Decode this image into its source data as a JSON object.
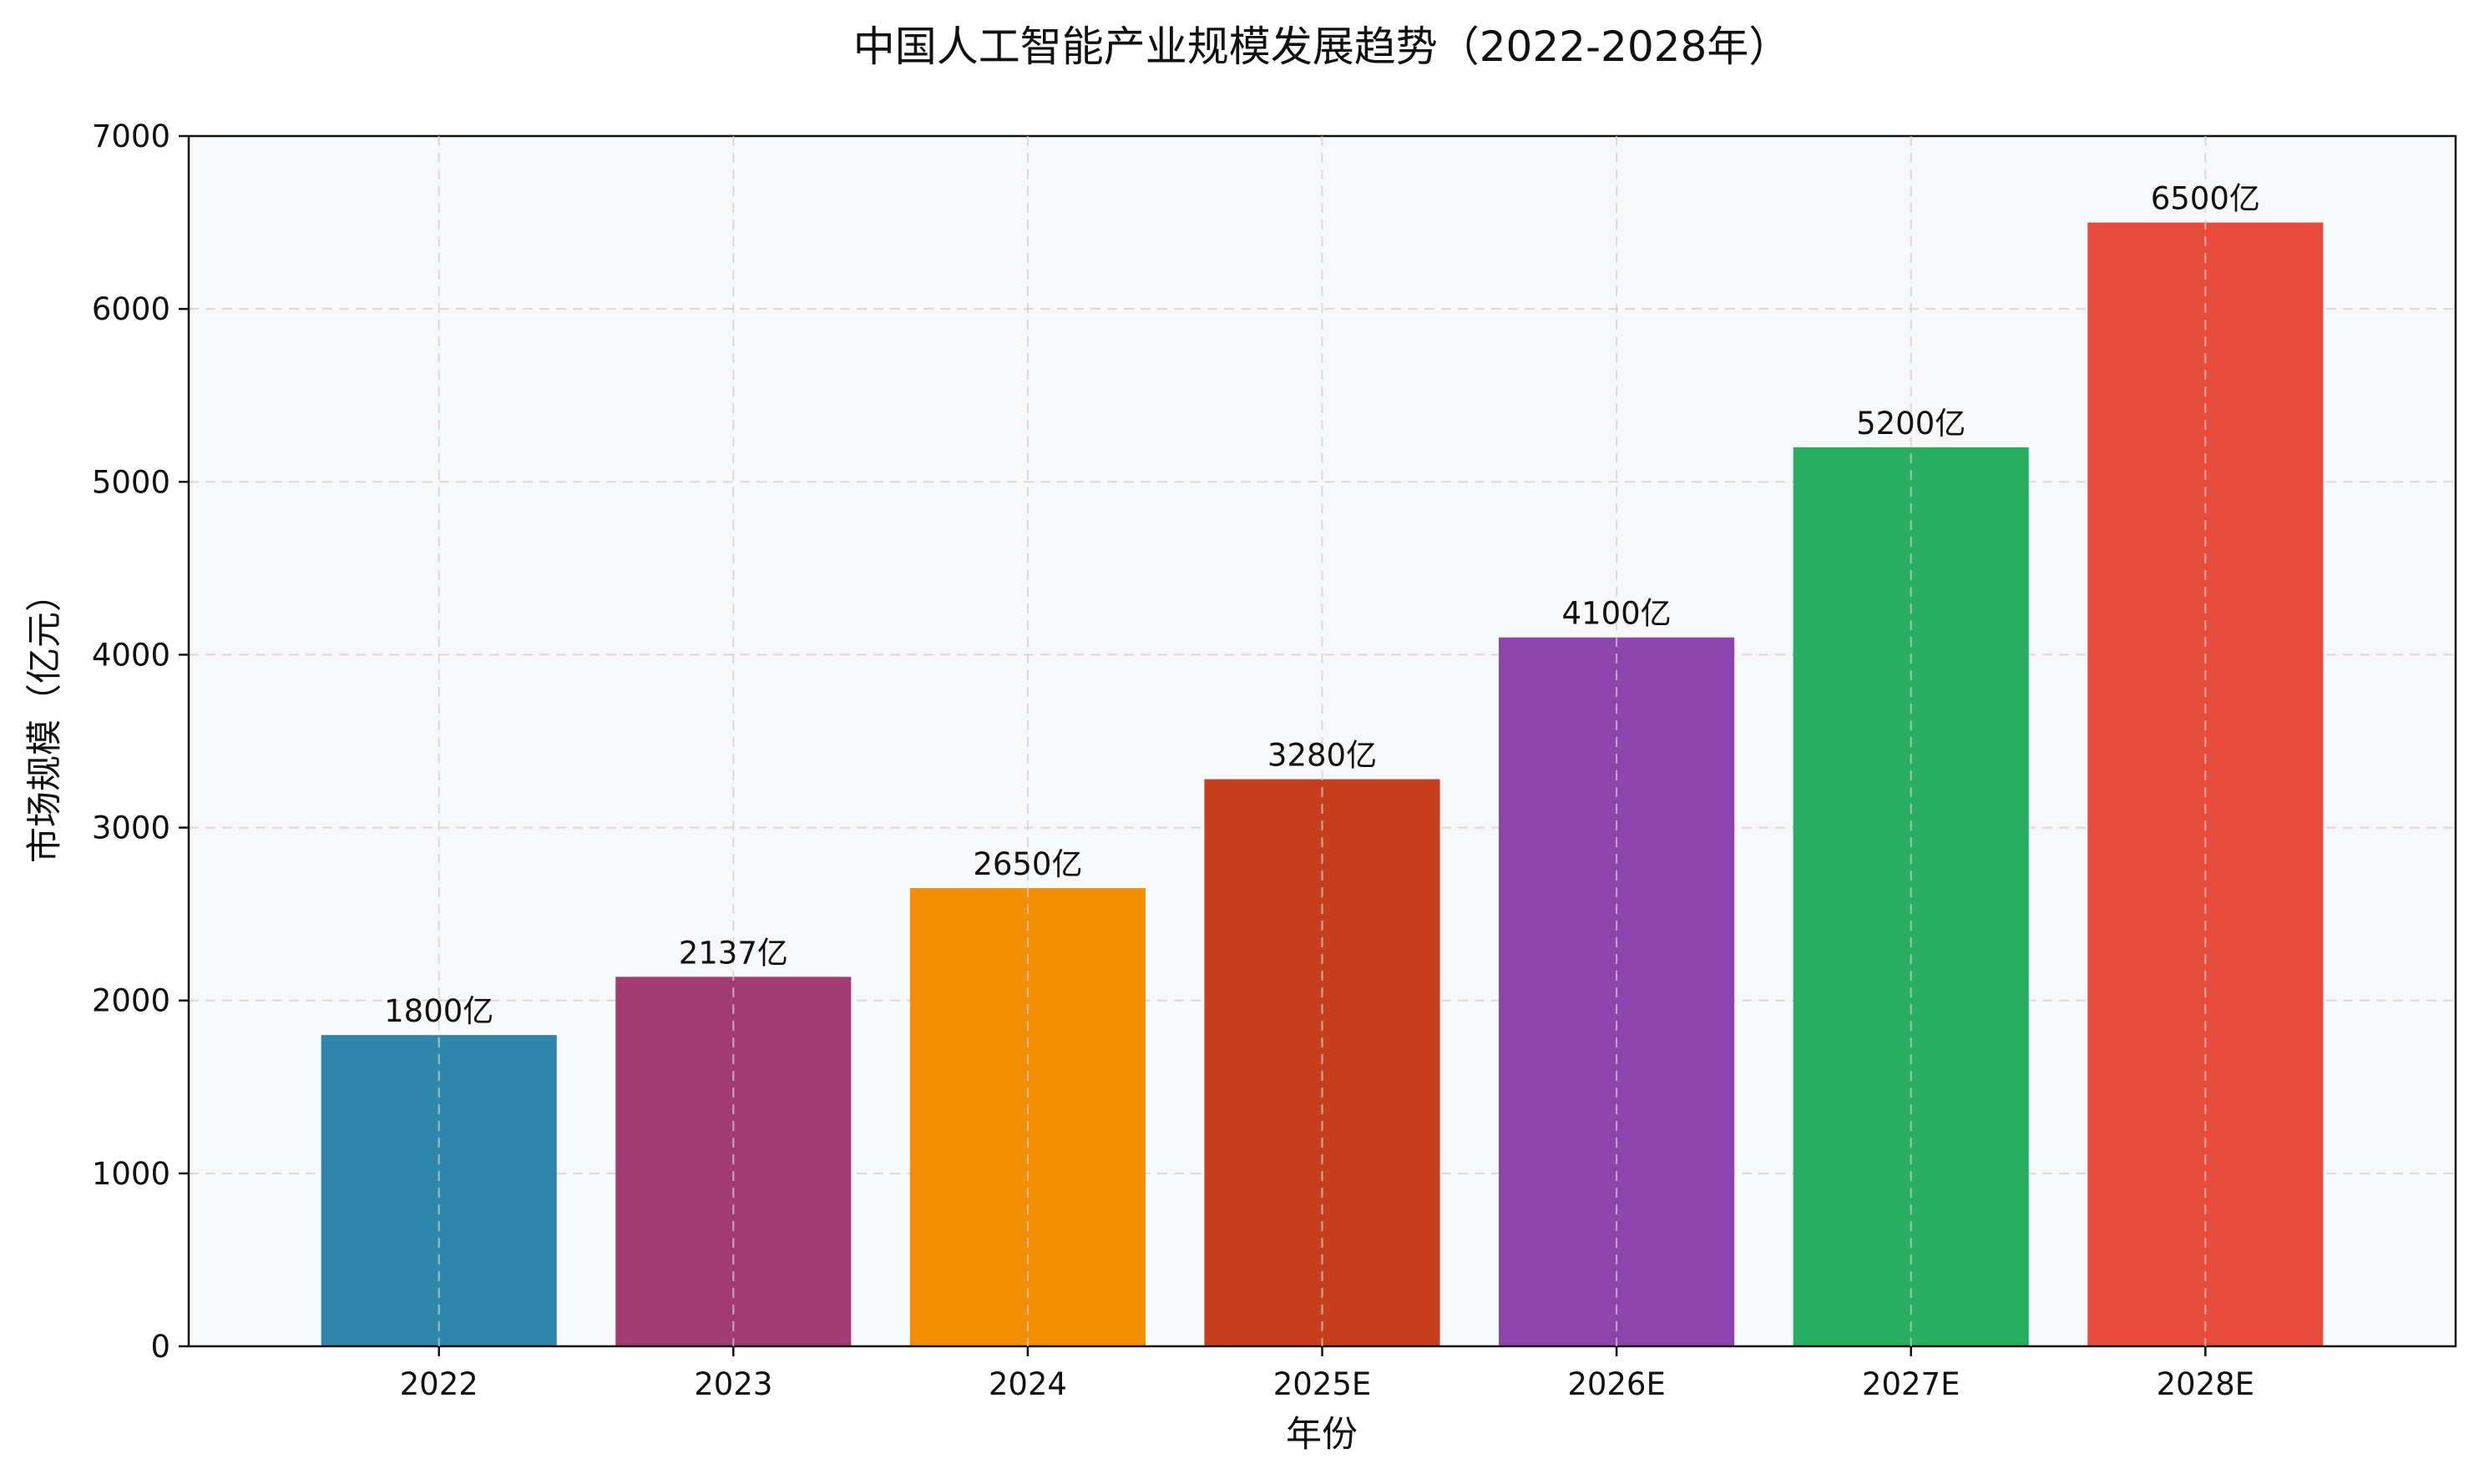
{
  "chart_data": {
    "type": "bar",
    "title": "中国人工智能产业规模发展趋势（2022-2028年）",
    "xlabel": "年份",
    "ylabel": "市场规模（亿元）",
    "categories": [
      "2022",
      "2023",
      "2024",
      "2025E",
      "2026E",
      "2027E",
      "2028E"
    ],
    "values": [
      1800,
      2137,
      2650,
      3280,
      4100,
      5200,
      6500
    ],
    "value_labels": [
      "1800亿",
      "2137亿",
      "2650亿",
      "3280亿",
      "4100亿",
      "5200亿",
      "6500亿"
    ],
    "colors": [
      "#2E86AB",
      "#A23B72",
      "#F18F01",
      "#C73E1D",
      "#8E44AD",
      "#27AE60",
      "#E74C3C"
    ],
    "ylim": [
      0,
      7000
    ],
    "yticks": [
      0,
      1000,
      2000,
      3000,
      4000,
      5000,
      6000,
      7000
    ],
    "grid": true,
    "plot_background": "#F7F8FA"
  }
}
